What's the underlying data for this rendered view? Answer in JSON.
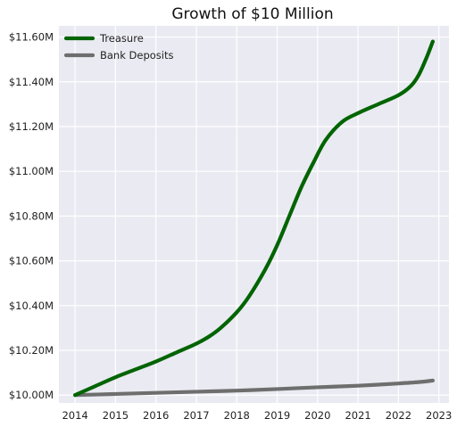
{
  "chart_data": {
    "type": "line",
    "title": "Growth of $10 Million",
    "xlabel": "",
    "ylabel": "",
    "xlim": [
      2013.6,
      2023.25
    ],
    "ylim": [
      9.965,
      11.65
    ],
    "x_ticks": [
      2014,
      2015,
      2016,
      2017,
      2018,
      2019,
      2020,
      2021,
      2022,
      2023
    ],
    "x_tick_labels": [
      "2014",
      "2015",
      "2016",
      "2017",
      "2018",
      "2019",
      "2020",
      "2021",
      "2022",
      "2023"
    ],
    "y_ticks": [
      10.0,
      10.2,
      10.4,
      10.6,
      10.8,
      11.0,
      11.2,
      11.4,
      11.6
    ],
    "y_tick_labels": [
      "$10.00M",
      "$10.20M",
      "$10.40M",
      "$10.60M",
      "$10.80M",
      "$11.00M",
      "$11.20M",
      "$11.40M",
      "$11.60M"
    ],
    "grid": true,
    "legend_position": "top-left",
    "background": "#eaeaf2",
    "series": [
      {
        "name": "Treasure",
        "color": "#006400",
        "x": [
          2014.0,
          2014.5,
          2015.0,
          2015.5,
          2016.0,
          2016.5,
          2017.0,
          2017.3,
          2017.6,
          2018.0,
          2018.3,
          2018.7,
          2019.0,
          2019.3,
          2019.6,
          2019.9,
          2020.2,
          2020.6,
          2021.0,
          2021.5,
          2022.0,
          2022.3,
          2022.5,
          2022.7,
          2022.85
        ],
        "values": [
          10.0,
          10.04,
          10.08,
          10.115,
          10.15,
          10.19,
          10.23,
          10.26,
          10.3,
          10.37,
          10.44,
          10.56,
          10.67,
          10.8,
          10.93,
          11.04,
          11.14,
          11.22,
          11.26,
          11.3,
          11.34,
          11.38,
          11.43,
          11.51,
          11.58
        ]
      },
      {
        "name": "Bank Deposits",
        "color": "#6e6e6e",
        "x": [
          2014.0,
          2015.0,
          2016.0,
          2017.0,
          2018.0,
          2019.0,
          2020.0,
          2021.0,
          2022.0,
          2022.5,
          2022.85
        ],
        "values": [
          10.0,
          10.005,
          10.01,
          10.015,
          10.02,
          10.027,
          10.035,
          10.042,
          10.052,
          10.058,
          10.065
        ]
      }
    ]
  }
}
